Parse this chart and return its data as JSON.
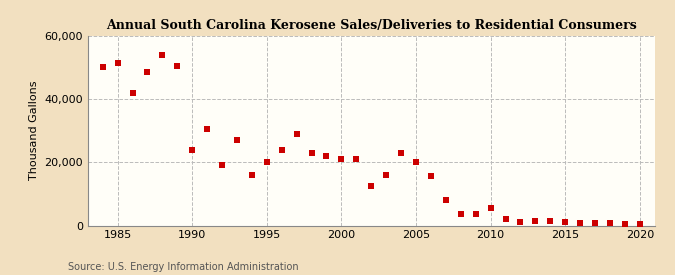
{
  "title": "Annual South Carolina Kerosene Sales/Deliveries to Residential Consumers",
  "ylabel": "Thousand Gallons",
  "source": "Source: U.S. Energy Information Administration",
  "outer_background": "#f2e0c0",
  "plot_background": "#fffef8",
  "marker_color": "#cc0000",
  "marker": "s",
  "marker_size": 5,
  "xlim": [
    1983,
    2021
  ],
  "ylim": [
    0,
    60000
  ],
  "xticks": [
    1985,
    1990,
    1995,
    2000,
    2005,
    2010,
    2015,
    2020
  ],
  "yticks": [
    0,
    20000,
    40000,
    60000
  ],
  "years": [
    1984,
    1985,
    1986,
    1987,
    1988,
    1989,
    1990,
    1991,
    1992,
    1993,
    1994,
    1995,
    1996,
    1997,
    1998,
    1999,
    2000,
    2001,
    2002,
    2003,
    2004,
    2005,
    2006,
    2007,
    2008,
    2009,
    2010,
    2011,
    2012,
    2013,
    2014,
    2015,
    2016,
    2017,
    2018,
    2019,
    2020
  ],
  "values": [
    50000,
    51500,
    42000,
    48500,
    54000,
    50500,
    24000,
    30500,
    19000,
    27000,
    16000,
    20000,
    24000,
    29000,
    23000,
    22000,
    21000,
    21000,
    12500,
    16000,
    23000,
    20000,
    15500,
    8000,
    3500,
    3500,
    5500,
    2000,
    1200,
    1500,
    1500,
    1000,
    900,
    800,
    700,
    600,
    400
  ]
}
